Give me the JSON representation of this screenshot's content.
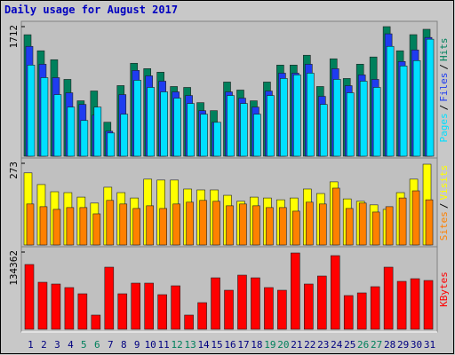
{
  "title": "Daily usage for August 2017",
  "legend_separator": "/",
  "chart_data": [
    {
      "type": "bar",
      "ylim": [
        0,
        1712
      ],
      "yticks": [
        1712
      ],
      "series": [
        {
          "name": "Hits",
          "color": "#00805c",
          "values": [
            1605,
            1393,
            1275,
            1015,
            732,
            862,
            449,
            933,
            1228,
            1157,
            1110,
            921,
            909,
            708,
            602,
            980,
            874,
            732,
            980,
            1204,
            1204,
            1334,
            921,
            1287,
            1027,
            1216,
            1311,
            1712,
            1393,
            1606,
            1677
          ]
        },
        {
          "name": "Files",
          "color": "#1f3cf0",
          "values": [
            1451,
            1215,
            1038,
            838,
            684,
            543,
            330,
            814,
            1133,
            1062,
            991,
            850,
            802,
            602,
            448,
            850,
            767,
            649,
            861,
            1097,
            1097,
            1215,
            791,
            1156,
            932,
            1074,
            1015,
            1617,
            1251,
            1404,
            1569
          ]
        },
        {
          "name": "Pages",
          "color": "#00e0ff",
          "values": [
            1204,
            1038,
            814,
            649,
            472,
            649,
            307,
            555,
            1003,
            909,
            850,
            767,
            696,
            555,
            448,
            802,
            696,
            555,
            802,
            1027,
            1074,
            1097,
            684,
            1015,
            838,
            991,
            909,
            1451,
            1192,
            1263,
            1546
          ]
        }
      ]
    },
    {
      "type": "bar",
      "ylim": [
        0,
        273
      ],
      "yticks": [
        273
      ],
      "series": [
        {
          "name": "Visits",
          "color": "#ffff00",
          "values": [
            241,
            202,
            178,
            175,
            160,
            140,
            193,
            175,
            157,
            220,
            217,
            217,
            187,
            184,
            184,
            166,
            146,
            160,
            157,
            151,
            157,
            187,
            172,
            211,
            154,
            146,
            134,
            119,
            175,
            220,
            270
          ]
        },
        {
          "name": "Sites",
          "color": "#ff8000",
          "values": [
            137,
            128,
            119,
            125,
            125,
            104,
            149,
            137,
            122,
            131,
            122,
            137,
            143,
            149,
            146,
            131,
            137,
            131,
            125,
            125,
            113,
            143,
            137,
            190,
            122,
            140,
            110,
            128,
            157,
            181,
            151
          ]
        }
      ]
    },
    {
      "type": "bar",
      "ylim": [
        0,
        134362
      ],
      "yticks": [
        134362
      ],
      "categories": [
        "1",
        "2",
        "3",
        "4",
        "5",
        "6",
        "7",
        "8",
        "9",
        "10",
        "11",
        "12",
        "13",
        "14",
        "15",
        "16",
        "17",
        "18",
        "19",
        "20",
        "21",
        "22",
        "23",
        "24",
        "25",
        "26",
        "27",
        "28",
        "29",
        "30",
        "31"
      ],
      "weekend": [
        4,
        5,
        11,
        12,
        18,
        19,
        25,
        26
      ],
      "weekend_color": "#00805c",
      "weekday_color": "#000080",
      "series": [
        {
          "name": "KBytes",
          "color": "#ff0000",
          "values": [
            112712,
            81832,
            78744,
            72568,
            61760,
            24704,
            108080,
            61760,
            80288,
            80288,
            60216,
            75656,
            24704,
            46320,
            89552,
            67936,
            94184,
            89552,
            72568,
            67936,
            132784,
            78744,
            92640,
            128152,
            58672,
            63304,
            74112,
            108080,
            83376,
            88008,
            84920
          ]
        }
      ]
    }
  ]
}
